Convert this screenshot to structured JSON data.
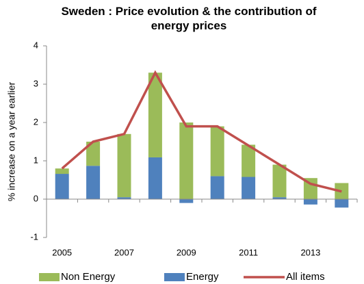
{
  "chart_data": {
    "type": "bar",
    "stacked": true,
    "title": "Sweden : Price evolution & the contribution of energy prices",
    "y_label": "% increase on a year earlier",
    "categories": [
      "2005",
      null,
      "2007",
      null,
      "2009",
      null,
      "2011",
      null,
      "2013",
      null
    ],
    "series": [
      {
        "name": "Non Energy",
        "type": "bar",
        "color": "#9bbb59",
        "values": [
          0.14,
          0.63,
          1.65,
          2.21,
          2.0,
          1.3,
          0.84,
          0.85,
          0.55,
          0.42
        ]
      },
      {
        "name": "Energy",
        "type": "bar",
        "color": "#4f81bd",
        "values": [
          0.66,
          0.87,
          0.05,
          1.09,
          -0.1,
          0.6,
          0.58,
          0.05,
          -0.14,
          -0.22
        ]
      },
      {
        "name": "All items",
        "type": "line",
        "color": "#c0504d",
        "values": [
          0.8,
          1.5,
          1.7,
          3.3,
          1.9,
          1.9,
          1.4,
          0.9,
          0.4,
          0.2
        ]
      }
    ],
    "ylim": [
      -1,
      4
    ],
    "yticks": [
      -1,
      0,
      1,
      2,
      3,
      4
    ]
  }
}
